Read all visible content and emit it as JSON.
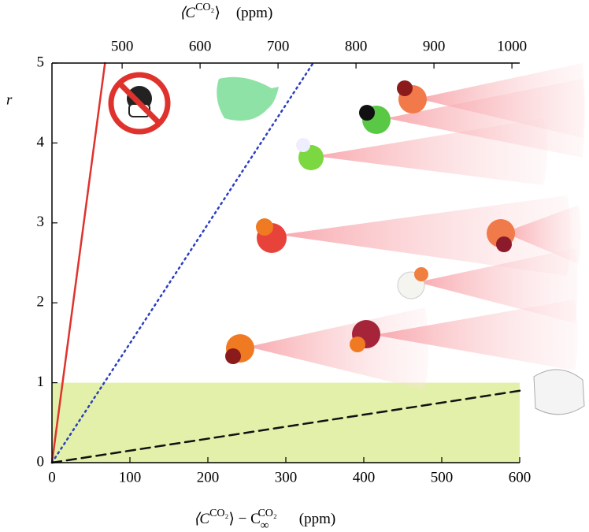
{
  "chart_data": {
    "type": "line",
    "x_label": [
      "⟨C",
      "CO₂",
      "⟩ − C",
      "∞",
      "CO₂",
      "(ppm)"
    ],
    "x2_label": [
      "⟨C",
      "CO₂",
      "⟩",
      "(ppm)"
    ],
    "y_label": "r",
    "xlim": [
      0,
      600
    ],
    "xticks": [
      0,
      100,
      200,
      300,
      400,
      500,
      600
    ],
    "x2lim": [
      410,
      1010
    ],
    "x2ticks": [
      500,
      600,
      700,
      800,
      900,
      1000
    ],
    "ylim": [
      0,
      5
    ],
    "yticks": [
      0,
      1,
      2,
      3,
      4,
      5
    ],
    "shaded_region": {
      "x": [
        0,
        600
      ],
      "y": [
        0,
        1
      ],
      "color": "#e2f0aa"
    },
    "series": [
      {
        "color": "#e0322c",
        "style": "solid",
        "x": [
          0,
          68
        ],
        "values": [
          0,
          5
        ]
      },
      {
        "color": "#2b3fbf",
        "style": "dotted",
        "x": [
          0,
          335
        ],
        "values": [
          0,
          5
        ]
      },
      {
        "color": "#111111",
        "style": "dashed",
        "x": [
          0,
          600
        ],
        "values": [
          0,
          0.9
        ]
      }
    ]
  }
}
